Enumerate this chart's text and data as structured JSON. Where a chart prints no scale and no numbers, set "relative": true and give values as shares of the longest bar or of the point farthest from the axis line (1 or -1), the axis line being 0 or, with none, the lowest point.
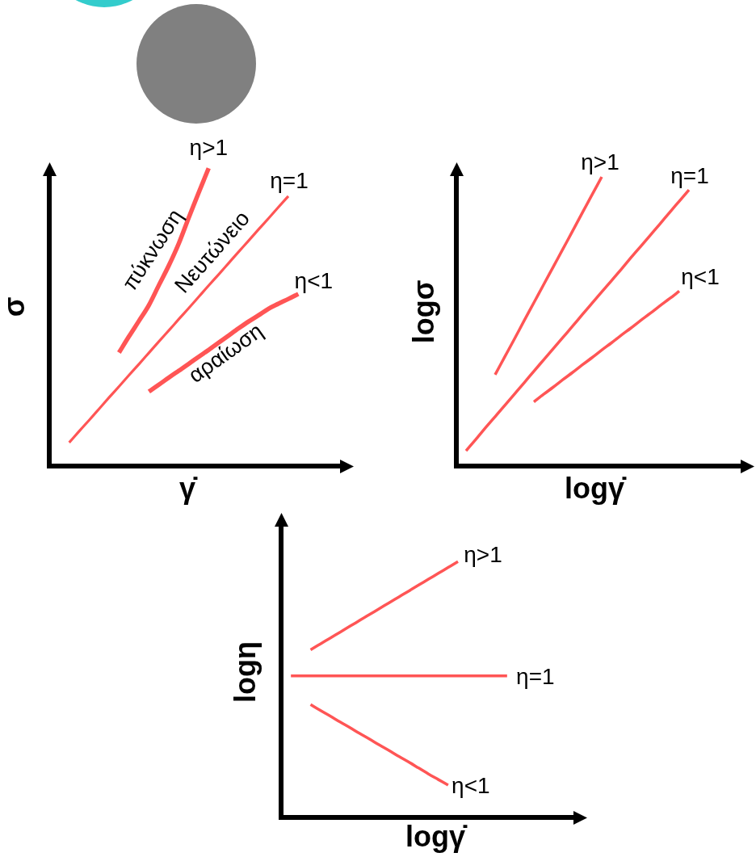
{
  "chart_data": [
    {
      "type": "line",
      "relative": true,
      "xlabel": "γ̇",
      "ylabel": "σ",
      "categories": [
        null,
        null,
        null,
        null,
        null,
        null,
        null,
        null,
        null,
        null,
        null,
        null,
        null,
        null,
        null,
        null,
        null,
        null,
        null,
        null,
        null,
        null,
        null,
        null,
        null,
        null,
        null,
        null,
        null,
        null,
        null
      ],
      "series": [
        {
          "name": "η>1",
          "color": "#ff5555",
          "values": [
            null,
            null,
            null,
            null,
            null,
            null,
            null,
            0.381,
            0.435,
            0.487,
            0.54,
            0.607,
            0.673,
            0.747,
            0.834,
            0.918,
            1,
            null,
            null,
            null,
            null,
            null,
            null,
            null,
            null,
            null,
            null,
            null,
            null,
            null,
            null
          ]
        },
        {
          "name": "η=1",
          "color": "#ff5555",
          "values": [
            null,
            null,
            0.079,
            0.117,
            0.154,
            0.192,
            0.23,
            0.267,
            0.305,
            0.342,
            0.38,
            0.418,
            0.455,
            0.493,
            0.53,
            0.568,
            0.606,
            0.643,
            0.681,
            0.719,
            0.756,
            0.794,
            0.831,
            0.869,
            0.906,
            null,
            null,
            null,
            null,
            null,
            null
          ]
        },
        {
          "name": "η<1",
          "color": "#ff5555",
          "values": [
            null,
            null,
            null,
            null,
            null,
            null,
            null,
            null,
            null,
            null,
            0.25,
            0.273,
            0.297,
            0.32,
            0.343,
            0.367,
            0.39,
            0.414,
            0.438,
            0.462,
            0.485,
            0.506,
            0.528,
            0.545,
            0.561,
            0.578,
            null,
            null,
            null,
            null,
            null
          ]
        }
      ],
      "annotations": [
        "πύκνωση",
        "Νευτώνειο",
        "αραίωση"
      ]
    },
    {
      "type": "line",
      "relative": true,
      "xlabel": "logγ̇",
      "ylabel": "logσ",
      "categories": [
        null,
        null,
        null,
        null,
        null,
        null,
        null,
        null,
        null,
        null,
        null,
        null,
        null,
        null,
        null,
        null,
        null,
        null,
        null,
        null,
        null,
        null,
        null,
        null,
        null,
        null,
        null,
        null,
        null,
        null,
        null
      ],
      "series": [
        {
          "name": "η>1",
          "color": "#ff5555",
          "values": [
            null,
            null,
            null,
            null,
            0.316,
            0.378,
            0.44,
            0.503,
            0.565,
            0.627,
            0.689,
            0.751,
            0.813,
            0.876,
            0.938,
            1,
            null,
            null,
            null,
            null,
            null,
            null,
            null,
            null,
            null,
            null,
            null,
            null,
            null,
            null,
            null
          ]
        },
        {
          "name": "η=1",
          "color": "#ff5555",
          "values": [
            null,
            0.053,
            0.092,
            0.132,
            0.171,
            0.21,
            0.249,
            0.288,
            0.328,
            0.367,
            0.406,
            0.445,
            0.484,
            0.524,
            0.563,
            0.602,
            0.641,
            0.68,
            0.72,
            0.759,
            0.798,
            0.837,
            0.877,
            0.916,
            0.955,
            null,
            null,
            null,
            null,
            null,
            null
          ]
        },
        {
          "name": "η<1",
          "color": "#ff5555",
          "values": [
            null,
            null,
            null,
            null,
            null,
            null,
            null,
            null,
            0.222,
            0.248,
            0.273,
            0.299,
            0.324,
            0.35,
            0.375,
            0.401,
            0.426,
            0.452,
            0.477,
            0.503,
            0.528,
            0.554,
            0.579,
            0.605,
            null,
            null,
            null,
            null,
            null,
            null,
            null
          ]
        }
      ]
    },
    {
      "type": "line",
      "relative": true,
      "xlabel": "logγ̇",
      "ylabel": "logη",
      "categories": [
        null,
        null,
        null,
        null,
        null,
        null,
        null,
        null,
        null,
        null,
        null,
        null,
        null,
        null,
        null,
        null,
        null,
        null,
        null,
        null,
        null,
        null,
        null,
        null,
        null,
        null,
        null,
        null,
        null,
        null,
        null
      ],
      "series": [
        {
          "name": "η>1",
          "color": "#ff5555",
          "values": [
            null,
            null,
            null,
            0.655,
            0.678,
            0.701,
            0.724,
            0.747,
            0.77,
            0.793,
            0.816,
            0.839,
            0.862,
            0.885,
            0.908,
            0.931,
            0.954,
            0.977,
            1,
            null,
            null,
            null,
            null,
            null,
            null,
            null,
            null,
            null,
            null,
            null,
            null
          ]
        },
        {
          "name": "η=1",
          "color": "#ff5555",
          "values": [
            null,
            0.553,
            0.553,
            0.553,
            0.553,
            0.553,
            0.553,
            0.553,
            0.553,
            0.553,
            0.553,
            0.553,
            0.553,
            0.553,
            0.553,
            0.553,
            0.553,
            0.553,
            0.553,
            0.553,
            0.553,
            0.553,
            0.553,
            0.553,
            null,
            null,
            null,
            null,
            null,
            null,
            null
          ]
        },
        {
          "name": "η<1",
          "color": "#ff5555",
          "values": [
            null,
            null,
            null,
            0.441,
            0.418,
            0.396,
            0.373,
            0.351,
            0.328,
            0.306,
            0.283,
            0.261,
            0.238,
            0.216,
            0.193,
            0.17,
            0.148,
            0.126,
            null,
            null,
            null,
            null,
            null,
            null,
            null,
            null,
            null,
            null,
            null,
            null,
            null
          ]
        }
      ]
    }
  ]
}
